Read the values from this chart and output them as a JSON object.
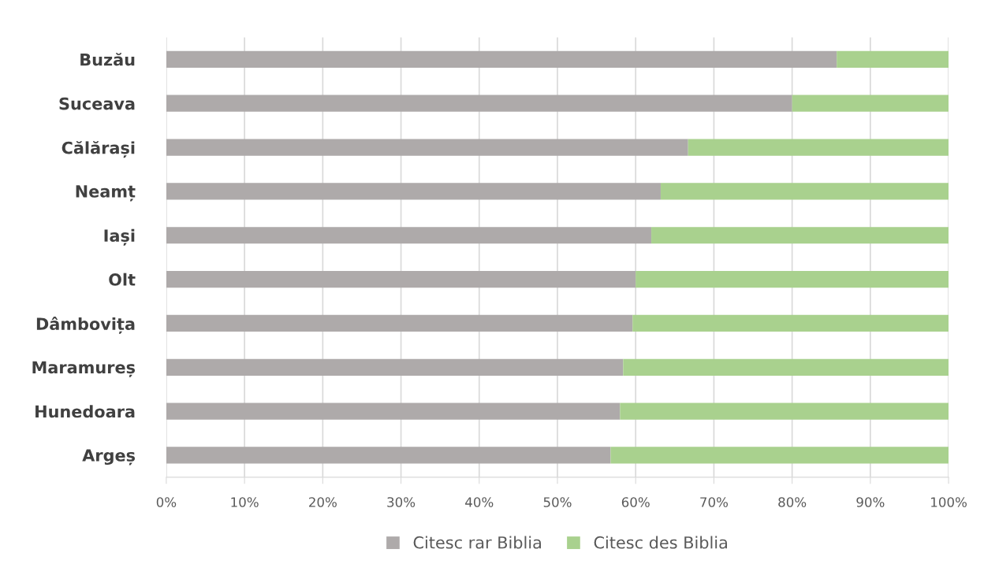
{
  "chart_data": {
    "type": "bar",
    "orientation": "horizontal",
    "stacked": true,
    "categories": [
      "Buzău",
      "Suceava",
      "Călărași",
      "Neamț",
      "Iași",
      "Olt",
      "Dâmbovița",
      "Maramureș",
      "Hunedoara",
      "Argeș"
    ],
    "series": [
      {
        "name": "Citesc rar Biblia",
        "color": "#aeaaaa",
        "values": [
          85.7,
          80.0,
          66.7,
          63.2,
          62.0,
          60.0,
          59.6,
          58.4,
          58.0,
          56.8
        ]
      },
      {
        "name": "Citesc des Biblia",
        "color": "#a9d18e",
        "values": [
          14.3,
          20.0,
          33.3,
          36.8,
          38.0,
          40.0,
          40.4,
          41.6,
          42.0,
          43.2
        ]
      }
    ],
    "xlim": [
      0,
      100
    ],
    "xticks": [
      {
        "value": 0,
        "label": "0%"
      },
      {
        "value": 10,
        "label": "10%"
      },
      {
        "value": 20,
        "label": "20%"
      },
      {
        "value": 30,
        "label": "30%"
      },
      {
        "value": 40,
        "label": "40%"
      },
      {
        "value": 50,
        "label": "50%"
      },
      {
        "value": 60,
        "label": "60%"
      },
      {
        "value": 70,
        "label": "70%"
      },
      {
        "value": 80,
        "label": "80%"
      },
      {
        "value": 90,
        "label": "90%"
      },
      {
        "value": 100,
        "label": "100%"
      }
    ],
    "grid": "x",
    "legend": "bottom"
  }
}
